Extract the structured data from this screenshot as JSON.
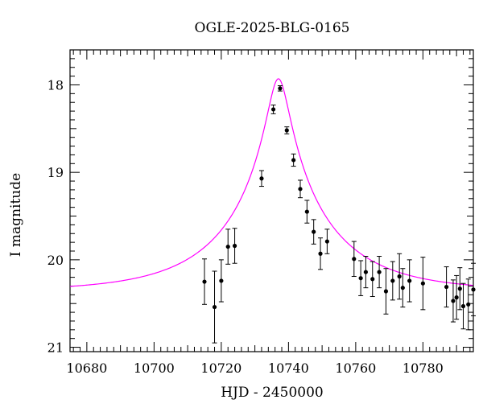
{
  "chart_data": {
    "type": "scatter",
    "title": "OGLE-2025-BLG-0165",
    "xlabel": "HJD - 2450000",
    "ylabel": "I magnitude",
    "xlim": [
      10675,
      10795
    ],
    "ylim": [
      21.05,
      17.6
    ],
    "y_inverted": true,
    "x_ticks": [
      10680,
      10700,
      10720,
      10740,
      10760,
      10780
    ],
    "y_ticks": [
      18,
      19,
      20,
      21
    ],
    "grid": false,
    "colors": {
      "model": "#ff00ff",
      "points": "#000000"
    },
    "model": {
      "name": "",
      "t0": 10737.0,
      "peak_mag": 17.93,
      "baseline_mag": 20.36
    },
    "points": [
      {
        "x": 10715.0,
        "y": 20.25,
        "err": 0.26
      },
      {
        "x": 10718.0,
        "y": 20.54,
        "err": 0.41
      },
      {
        "x": 10720.0,
        "y": 20.24,
        "err": 0.24
      },
      {
        "x": 10722.0,
        "y": 19.85,
        "err": 0.2
      },
      {
        "x": 10724.0,
        "y": 19.84,
        "err": 0.2
      },
      {
        "x": 10732.0,
        "y": 19.07,
        "err": 0.09
      },
      {
        "x": 10735.5,
        "y": 18.28,
        "err": 0.05
      },
      {
        "x": 10737.5,
        "y": 18.04,
        "err": 0.03
      },
      {
        "x": 10739.5,
        "y": 18.52,
        "err": 0.04
      },
      {
        "x": 10741.5,
        "y": 18.86,
        "err": 0.07
      },
      {
        "x": 10743.5,
        "y": 19.19,
        "err": 0.1
      },
      {
        "x": 10745.5,
        "y": 19.45,
        "err": 0.13
      },
      {
        "x": 10747.5,
        "y": 19.68,
        "err": 0.14
      },
      {
        "x": 10749.5,
        "y": 19.93,
        "err": 0.18
      },
      {
        "x": 10751.5,
        "y": 19.79,
        "err": 0.14
      },
      {
        "x": 10759.5,
        "y": 19.99,
        "err": 0.2
      },
      {
        "x": 10761.5,
        "y": 20.21,
        "err": 0.2
      },
      {
        "x": 10763.0,
        "y": 20.14,
        "err": 0.18
      },
      {
        "x": 10765.0,
        "y": 20.22,
        "err": 0.2
      },
      {
        "x": 10767.0,
        "y": 20.14,
        "err": 0.18
      },
      {
        "x": 10769.0,
        "y": 20.36,
        "err": 0.26
      },
      {
        "x": 10771.0,
        "y": 20.24,
        "err": 0.22
      },
      {
        "x": 10773.0,
        "y": 20.19,
        "err": 0.26
      },
      {
        "x": 10774.0,
        "y": 20.32,
        "err": 0.22
      },
      {
        "x": 10776.0,
        "y": 20.24,
        "err": 0.24
      },
      {
        "x": 10780.0,
        "y": 20.27,
        "err": 0.3
      },
      {
        "x": 10787.0,
        "y": 20.31,
        "err": 0.23
      },
      {
        "x": 10789.0,
        "y": 20.47,
        "err": 0.24
      },
      {
        "x": 10790.0,
        "y": 20.43,
        "err": 0.25
      },
      {
        "x": 10791.0,
        "y": 20.33,
        "err": 0.24
      },
      {
        "x": 10792.0,
        "y": 20.53,
        "err": 0.26
      },
      {
        "x": 10793.5,
        "y": 20.51,
        "err": 0.29
      },
      {
        "x": 10795.0,
        "y": 20.34,
        "err": 0.3
      }
    ]
  }
}
